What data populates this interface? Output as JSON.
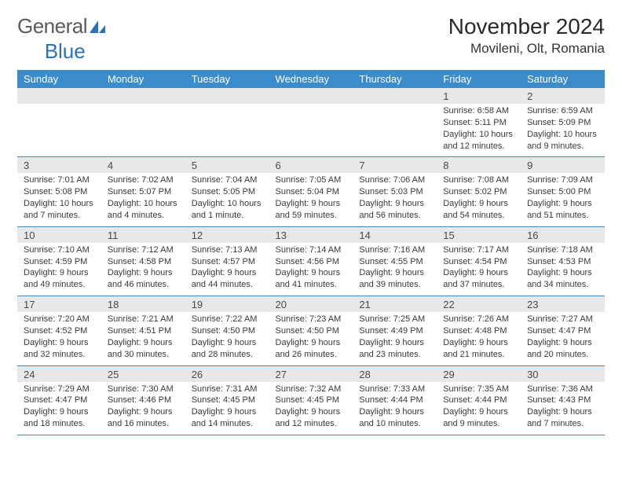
{
  "brand": {
    "word1": "General",
    "word2": "Blue"
  },
  "title": "November 2024",
  "location": "Movileni, Olt, Romania",
  "colors": {
    "header_bg": "#3b8ccc",
    "header_text": "#ffffff",
    "day_bg": "#e8e8e8",
    "border": "#3b8ccc",
    "text": "#333333",
    "logo_blue": "#2d6fb8"
  },
  "dow": [
    "Sunday",
    "Monday",
    "Tuesday",
    "Wednesday",
    "Thursday",
    "Friday",
    "Saturday"
  ],
  "weeks": [
    [
      {
        "n": "",
        "lines": []
      },
      {
        "n": "",
        "lines": []
      },
      {
        "n": "",
        "lines": []
      },
      {
        "n": "",
        "lines": []
      },
      {
        "n": "",
        "lines": []
      },
      {
        "n": "1",
        "lines": [
          "Sunrise: 6:58 AM",
          "Sunset: 5:11 PM",
          "Daylight: 10 hours and 12 minutes."
        ]
      },
      {
        "n": "2",
        "lines": [
          "Sunrise: 6:59 AM",
          "Sunset: 5:09 PM",
          "Daylight: 10 hours and 9 minutes."
        ]
      }
    ],
    [
      {
        "n": "3",
        "lines": [
          "Sunrise: 7:01 AM",
          "Sunset: 5:08 PM",
          "Daylight: 10 hours and 7 minutes."
        ]
      },
      {
        "n": "4",
        "lines": [
          "Sunrise: 7:02 AM",
          "Sunset: 5:07 PM",
          "Daylight: 10 hours and 4 minutes."
        ]
      },
      {
        "n": "5",
        "lines": [
          "Sunrise: 7:04 AM",
          "Sunset: 5:05 PM",
          "Daylight: 10 hours and 1 minute."
        ]
      },
      {
        "n": "6",
        "lines": [
          "Sunrise: 7:05 AM",
          "Sunset: 5:04 PM",
          "Daylight: 9 hours and 59 minutes."
        ]
      },
      {
        "n": "7",
        "lines": [
          "Sunrise: 7:06 AM",
          "Sunset: 5:03 PM",
          "Daylight: 9 hours and 56 minutes."
        ]
      },
      {
        "n": "8",
        "lines": [
          "Sunrise: 7:08 AM",
          "Sunset: 5:02 PM",
          "Daylight: 9 hours and 54 minutes."
        ]
      },
      {
        "n": "9",
        "lines": [
          "Sunrise: 7:09 AM",
          "Sunset: 5:00 PM",
          "Daylight: 9 hours and 51 minutes."
        ]
      }
    ],
    [
      {
        "n": "10",
        "lines": [
          "Sunrise: 7:10 AM",
          "Sunset: 4:59 PM",
          "Daylight: 9 hours and 49 minutes."
        ]
      },
      {
        "n": "11",
        "lines": [
          "Sunrise: 7:12 AM",
          "Sunset: 4:58 PM",
          "Daylight: 9 hours and 46 minutes."
        ]
      },
      {
        "n": "12",
        "lines": [
          "Sunrise: 7:13 AM",
          "Sunset: 4:57 PM",
          "Daylight: 9 hours and 44 minutes."
        ]
      },
      {
        "n": "13",
        "lines": [
          "Sunrise: 7:14 AM",
          "Sunset: 4:56 PM",
          "Daylight: 9 hours and 41 minutes."
        ]
      },
      {
        "n": "14",
        "lines": [
          "Sunrise: 7:16 AM",
          "Sunset: 4:55 PM",
          "Daylight: 9 hours and 39 minutes."
        ]
      },
      {
        "n": "15",
        "lines": [
          "Sunrise: 7:17 AM",
          "Sunset: 4:54 PM",
          "Daylight: 9 hours and 37 minutes."
        ]
      },
      {
        "n": "16",
        "lines": [
          "Sunrise: 7:18 AM",
          "Sunset: 4:53 PM",
          "Daylight: 9 hours and 34 minutes."
        ]
      }
    ],
    [
      {
        "n": "17",
        "lines": [
          "Sunrise: 7:20 AM",
          "Sunset: 4:52 PM",
          "Daylight: 9 hours and 32 minutes."
        ]
      },
      {
        "n": "18",
        "lines": [
          "Sunrise: 7:21 AM",
          "Sunset: 4:51 PM",
          "Daylight: 9 hours and 30 minutes."
        ]
      },
      {
        "n": "19",
        "lines": [
          "Sunrise: 7:22 AM",
          "Sunset: 4:50 PM",
          "Daylight: 9 hours and 28 minutes."
        ]
      },
      {
        "n": "20",
        "lines": [
          "Sunrise: 7:23 AM",
          "Sunset: 4:50 PM",
          "Daylight: 9 hours and 26 minutes."
        ]
      },
      {
        "n": "21",
        "lines": [
          "Sunrise: 7:25 AM",
          "Sunset: 4:49 PM",
          "Daylight: 9 hours and 23 minutes."
        ]
      },
      {
        "n": "22",
        "lines": [
          "Sunrise: 7:26 AM",
          "Sunset: 4:48 PM",
          "Daylight: 9 hours and 21 minutes."
        ]
      },
      {
        "n": "23",
        "lines": [
          "Sunrise: 7:27 AM",
          "Sunset: 4:47 PM",
          "Daylight: 9 hours and 20 minutes."
        ]
      }
    ],
    [
      {
        "n": "24",
        "lines": [
          "Sunrise: 7:29 AM",
          "Sunset: 4:47 PM",
          "Daylight: 9 hours and 18 minutes."
        ]
      },
      {
        "n": "25",
        "lines": [
          "Sunrise: 7:30 AM",
          "Sunset: 4:46 PM",
          "Daylight: 9 hours and 16 minutes."
        ]
      },
      {
        "n": "26",
        "lines": [
          "Sunrise: 7:31 AM",
          "Sunset: 4:45 PM",
          "Daylight: 9 hours and 14 minutes."
        ]
      },
      {
        "n": "27",
        "lines": [
          "Sunrise: 7:32 AM",
          "Sunset: 4:45 PM",
          "Daylight: 9 hours and 12 minutes."
        ]
      },
      {
        "n": "28",
        "lines": [
          "Sunrise: 7:33 AM",
          "Sunset: 4:44 PM",
          "Daylight: 9 hours and 10 minutes."
        ]
      },
      {
        "n": "29",
        "lines": [
          "Sunrise: 7:35 AM",
          "Sunset: 4:44 PM",
          "Daylight: 9 hours and 9 minutes."
        ]
      },
      {
        "n": "30",
        "lines": [
          "Sunrise: 7:36 AM",
          "Sunset: 4:43 PM",
          "Daylight: 9 hours and 7 minutes."
        ]
      }
    ]
  ]
}
